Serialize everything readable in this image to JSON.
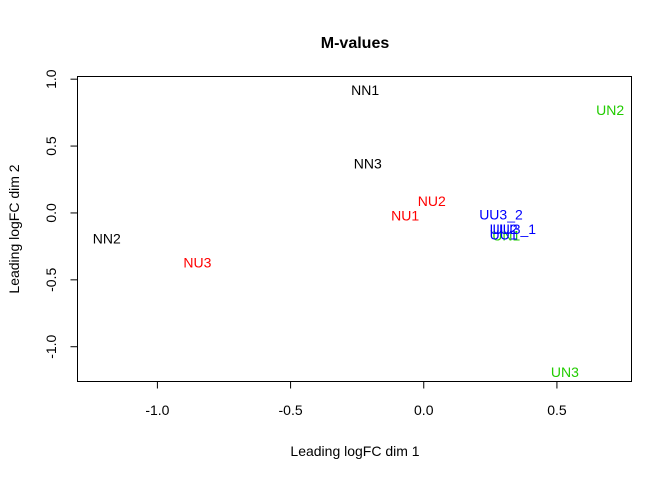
{
  "chart_data": {
    "type": "scatter",
    "title": "M-values",
    "xlabel": "Leading logFC dim 1",
    "ylabel": "Leading logFC dim 2",
    "xlim": [
      -1.3,
      0.78
    ],
    "ylim": [
      -1.26,
      1.02
    ],
    "xticks": [
      -1.0,
      -0.5,
      0.0,
      0.5
    ],
    "xtick_labels": [
      "-1.0",
      "-0.5",
      "0.0",
      "0.5"
    ],
    "yticks": [
      -1.0,
      -0.5,
      0.0,
      0.5,
      1.0
    ],
    "ytick_labels": [
      "-1.0",
      "-0.5",
      "0.0",
      "0.5",
      "1.0"
    ],
    "grid": false,
    "points": [
      {
        "label": "NN1",
        "x": -0.22,
        "y": 0.92,
        "color": "#000000"
      },
      {
        "label": "NN2",
        "x": -1.19,
        "y": -0.19,
        "color": "#000000"
      },
      {
        "label": "NN3",
        "x": -0.21,
        "y": 0.37,
        "color": "#000000"
      },
      {
        "label": "NU1",
        "x": -0.07,
        "y": -0.02,
        "color": "#ff0000"
      },
      {
        "label": "NU2",
        "x": 0.03,
        "y": 0.09,
        "color": "#ff0000"
      },
      {
        "label": "NU3",
        "x": -0.85,
        "y": -0.37,
        "color": "#ff0000"
      },
      {
        "label": "UN1",
        "x": 0.31,
        "y": -0.17,
        "color": "#22cc00"
      },
      {
        "label": "UN2",
        "x": 0.7,
        "y": 0.77,
        "color": "#22cc00"
      },
      {
        "label": "UN3",
        "x": 0.53,
        "y": -1.19,
        "color": "#22cc00"
      },
      {
        "label": "UU1",
        "x": 0.3,
        "y": -0.16,
        "color": "#0000ff"
      },
      {
        "label": "UU2",
        "x": 0.3,
        "y": -0.12,
        "color": "#0000ff"
      },
      {
        "label": "UU3_1",
        "x": 0.34,
        "y": -0.12,
        "color": "#0000ff"
      },
      {
        "label": "UU3_2",
        "x": 0.29,
        "y": -0.01,
        "color": "#0000ff"
      }
    ]
  }
}
